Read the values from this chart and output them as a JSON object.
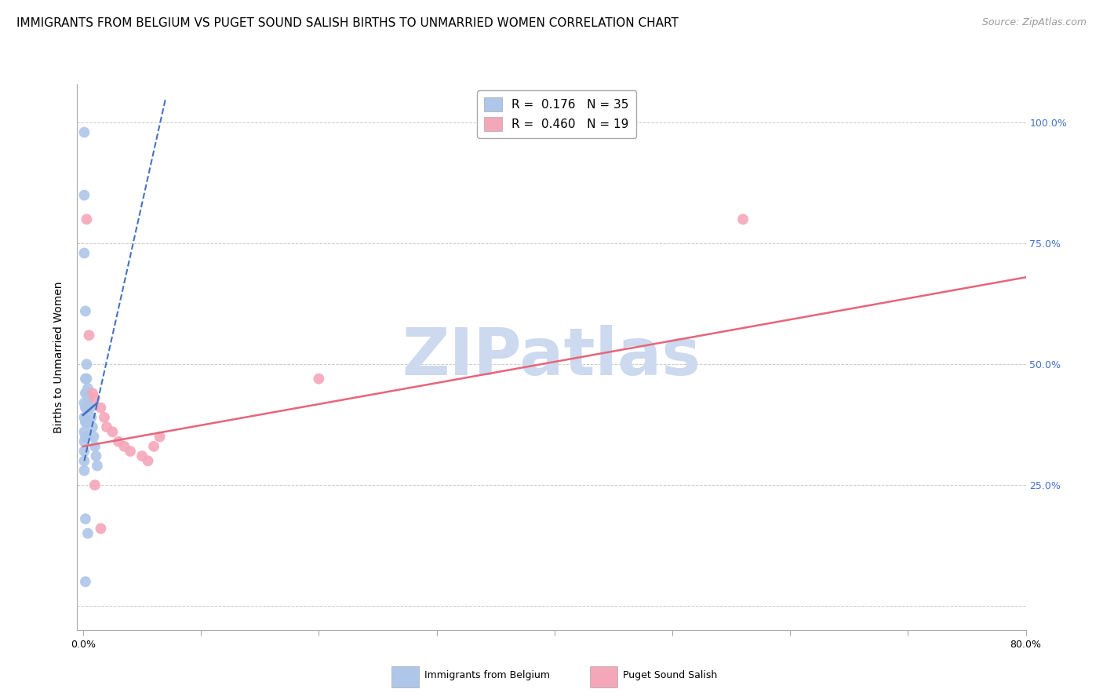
{
  "title": "IMMIGRANTS FROM BELGIUM VS PUGET SOUND SALISH BIRTHS TO UNMARRIED WOMEN CORRELATION CHART",
  "source": "Source: ZipAtlas.com",
  "ylabel": "Births to Unmarried Women",
  "watermark": "ZIPatlas",
  "xlim": [
    -0.005,
    0.8
  ],
  "ylim": [
    -0.05,
    1.08
  ],
  "legend_R_blue": "0.176",
  "legend_N_blue": "35",
  "legend_R_pink": "0.460",
  "legend_N_pink": "19",
  "blue_scatter_x": [
    0.001,
    0.001,
    0.001,
    0.001,
    0.001,
    0.001,
    0.001,
    0.001,
    0.001,
    0.001,
    0.002,
    0.002,
    0.002,
    0.002,
    0.002,
    0.002,
    0.002,
    0.002,
    0.003,
    0.003,
    0.003,
    0.003,
    0.003,
    0.003,
    0.004,
    0.004,
    0.004,
    0.005,
    0.006,
    0.007,
    0.008,
    0.009,
    0.01,
    0.011,
    0.012
  ],
  "blue_scatter_y": [
    0.98,
    0.85,
    0.73,
    0.42,
    0.39,
    0.36,
    0.34,
    0.32,
    0.3,
    0.28,
    0.61,
    0.47,
    0.44,
    0.41,
    0.38,
    0.35,
    0.18,
    0.05,
    0.5,
    0.47,
    0.44,
    0.41,
    0.38,
    0.35,
    0.45,
    0.42,
    0.15,
    0.43,
    0.41,
    0.39,
    0.37,
    0.35,
    0.33,
    0.31,
    0.29
  ],
  "pink_scatter_x": [
    0.003,
    0.005,
    0.008,
    0.01,
    0.015,
    0.018,
    0.02,
    0.025,
    0.03,
    0.035,
    0.04,
    0.05,
    0.055,
    0.06,
    0.065,
    0.2,
    0.56,
    0.01,
    0.015
  ],
  "pink_scatter_y": [
    0.8,
    0.56,
    0.44,
    0.43,
    0.41,
    0.39,
    0.37,
    0.36,
    0.34,
    0.33,
    0.32,
    0.31,
    0.3,
    0.33,
    0.35,
    0.47,
    0.8,
    0.25,
    0.16
  ],
  "blue_dash_line_x": [
    0.001,
    0.07
  ],
  "blue_dash_line_y": [
    0.3,
    1.05
  ],
  "blue_solid_line_x": [
    0.0,
    0.012
  ],
  "blue_solid_line_y": [
    0.395,
    0.42
  ],
  "pink_line_x": [
    0.0,
    0.8
  ],
  "pink_line_y": [
    0.33,
    0.68
  ],
  "blue_color": "#aec6e8",
  "pink_color": "#f4a7b9",
  "blue_line_color": "#4472c4",
  "pink_line_color": "#e8647a",
  "grid_color": "#cccccc",
  "background_color": "#ffffff",
  "title_fontsize": 11,
  "source_fontsize": 9,
  "axis_label_fontsize": 10,
  "tick_fontsize": 9,
  "legend_fontsize": 11,
  "watermark_fontsize": 60,
  "watermark_color": "#ccd9ee",
  "scatter_size": 100,
  "right_tick_color": "#4472c4"
}
